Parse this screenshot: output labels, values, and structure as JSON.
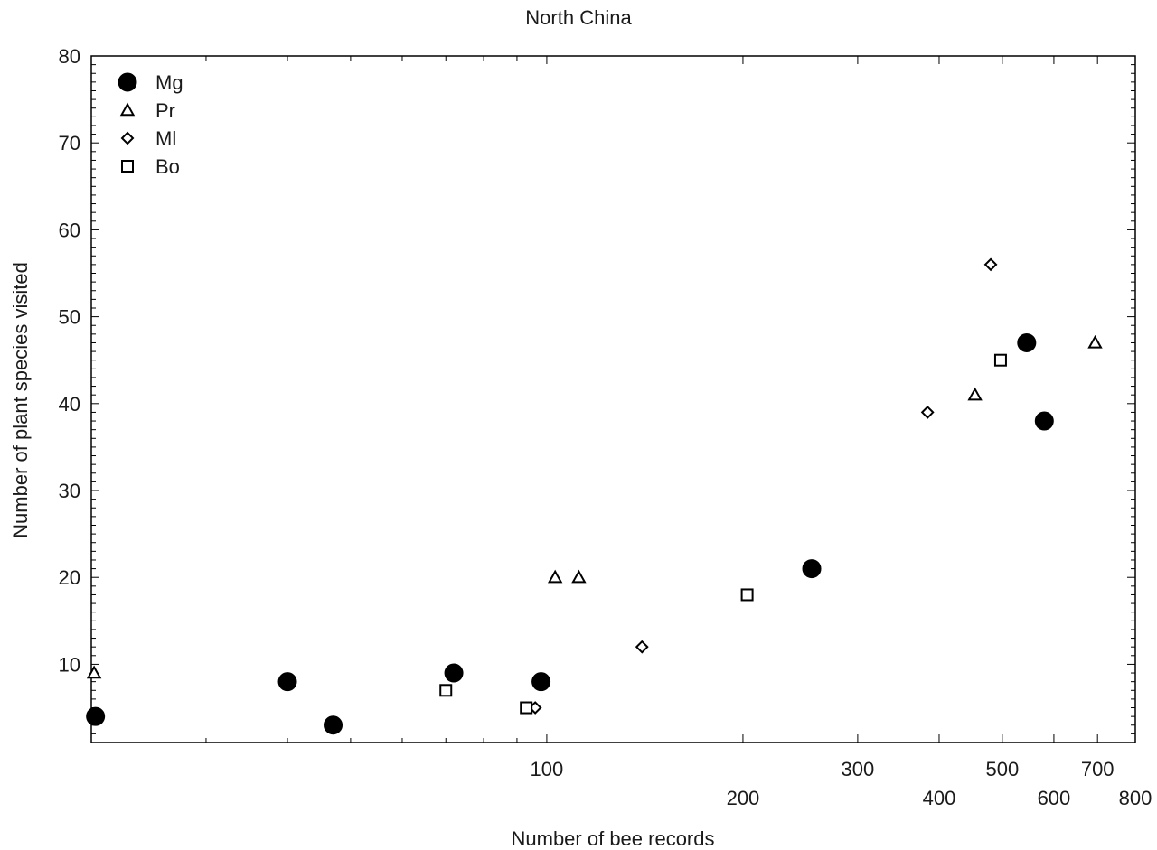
{
  "chart_data": {
    "type": "scatter",
    "title": "North China",
    "xlabel": "Number of bee records",
    "ylabel": "Number of plant species visited",
    "x_scale": "log",
    "xlim": [
      20,
      800
    ],
    "ylim": [
      1,
      80
    ],
    "grid": false,
    "legend_position": "top-left",
    "x_ticks": [
      {
        "value": 100,
        "label": "100"
      },
      {
        "value": 200,
        "label": "200"
      },
      {
        "value": 300,
        "label": "300"
      },
      {
        "value": 400,
        "label": "400"
      },
      {
        "value": 500,
        "label": "500"
      },
      {
        "value": 600,
        "label": "600"
      },
      {
        "value": 700,
        "label": "700"
      },
      {
        "value": 800,
        "label": "800"
      }
    ],
    "y_ticks": [
      10,
      20,
      30,
      40,
      50,
      60,
      70,
      80
    ],
    "series": [
      {
        "name": "Mg",
        "marker": "filled-circle",
        "points": [
          [
            20.3,
            4
          ],
          [
            40,
            8
          ],
          [
            47,
            3
          ],
          [
            72,
            9
          ],
          [
            98,
            8
          ],
          [
            255,
            21
          ],
          [
            545,
            47
          ],
          [
            580,
            38
          ]
        ]
      },
      {
        "name": "Pr",
        "marker": "open-triangle",
        "points": [
          [
            20.2,
            9
          ],
          [
            103,
            20
          ],
          [
            112,
            20
          ],
          [
            454,
            41
          ],
          [
            694,
            47
          ]
        ]
      },
      {
        "name": "Ml",
        "marker": "open-diamond",
        "points": [
          [
            96,
            5
          ],
          [
            140,
            12
          ],
          [
            384,
            39
          ],
          [
            480,
            56
          ]
        ]
      },
      {
        "name": "Bo",
        "marker": "open-square",
        "points": [
          [
            70,
            7
          ],
          [
            93,
            5
          ],
          [
            203,
            18
          ],
          [
            497,
            45
          ]
        ]
      }
    ]
  }
}
